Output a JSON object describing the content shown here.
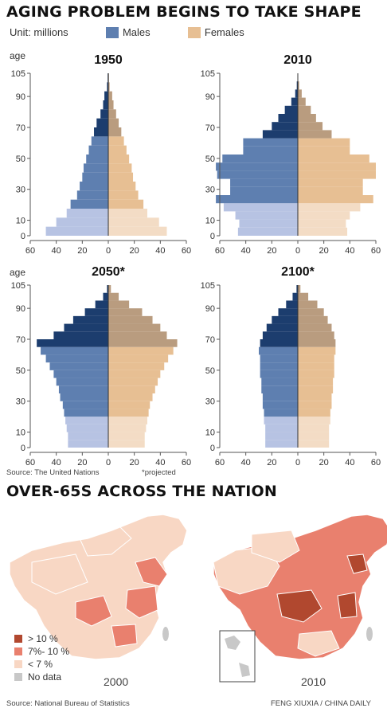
{
  "header": {
    "title": "AGING PROBLEM BEGINS TO TAKE SHAPE",
    "unit": "Unit: millions",
    "males_label": "Males",
    "females_label": "Females",
    "age_label": "age",
    "source_un": "Source: The United Nations",
    "projected_note": "*projected"
  },
  "colors": {
    "male_young": "#b7c3e3",
    "male_mid": "#5e7fb0",
    "male_old": "#1c3d6e",
    "female_young": "#f3dcc5",
    "female_mid": "#e7bf93",
    "female_old": "#b99c7f",
    "map_high": "#b1482f",
    "map_mid": "#e9806e",
    "map_low": "#f8d7c4",
    "map_nodata": "#c8c8c8"
  },
  "chart_data": [
    {
      "type": "bar",
      "subtype": "population-pyramid",
      "title": "1950",
      "ylabel": "age",
      "age_ticks": [
        0,
        10,
        30,
        50,
        70,
        90,
        105
      ],
      "x_ticks": [
        "60",
        "40",
        "20",
        "0",
        "20",
        "40",
        "60"
      ],
      "xlim": [
        -60,
        60
      ],
      "ylim": [
        0,
        105
      ],
      "age_groups": [
        "0-4",
        "5-9",
        "10-14",
        "15-19",
        "20-24",
        "25-29",
        "30-34",
        "35-39",
        "40-44",
        "45-49",
        "50-54",
        "55-59",
        "60-64",
        "65-69",
        "70-74",
        "75-79",
        "80-84",
        "85+"
      ],
      "series": [
        {
          "name": "Males",
          "values": [
            48,
            40,
            32,
            29,
            24,
            22,
            20,
            19,
            17,
            15,
            13,
            11,
            9,
            6,
            4,
            3,
            1,
            0.5
          ]
        },
        {
          "name": "Females",
          "values": [
            45,
            39,
            30,
            27,
            23,
            21,
            19,
            18,
            16,
            14,
            12,
            10,
            8,
            6,
            4,
            3,
            1,
            0.5
          ]
        }
      ]
    },
    {
      "type": "bar",
      "subtype": "population-pyramid",
      "title": "2010",
      "ylabel": "age",
      "age_ticks": [
        0,
        10,
        30,
        50,
        70,
        90,
        105
      ],
      "x_ticks": [
        "60",
        "40",
        "20",
        "0",
        "20",
        "40",
        "60"
      ],
      "xlim": [
        -60,
        60
      ],
      "ylim": [
        0,
        105
      ],
      "age_groups": [
        "0-4",
        "5-9",
        "10-14",
        "15-19",
        "20-24",
        "25-29",
        "30-34",
        "35-39",
        "40-44",
        "45-49",
        "50-54",
        "55-59",
        "60-64",
        "65-69",
        "70-74",
        "75-79",
        "80-84",
        "85-89",
        "90-94",
        "95+"
      ],
      "series": [
        {
          "name": "Males",
          "values": [
            46,
            45,
            48,
            57,
            63,
            52,
            52,
            62,
            63,
            58,
            42,
            42,
            27,
            20,
            15,
            10,
            5,
            2,
            0.8,
            0.2
          ]
        },
        {
          "name": "Females",
          "values": [
            38,
            37,
            40,
            48,
            58,
            50,
            50,
            60,
            60,
            55,
            40,
            40,
            26,
            19,
            14,
            10,
            6,
            3,
            1,
            0.3
          ]
        }
      ]
    },
    {
      "type": "bar",
      "subtype": "population-pyramid",
      "title": "2050*",
      "ylabel": "age",
      "age_ticks": [
        0,
        10,
        30,
        50,
        70,
        90,
        105
      ],
      "x_ticks": [
        "60",
        "40",
        "20",
        "0",
        "20",
        "40",
        "60"
      ],
      "xlim": [
        -60,
        60
      ],
      "ylim": [
        0,
        105
      ],
      "age_groups": [
        "0-4",
        "5-9",
        "10-14",
        "15-19",
        "20-24",
        "25-29",
        "30-34",
        "35-39",
        "40-44",
        "45-49",
        "50-54",
        "55-59",
        "60-64",
        "65-69",
        "70-74",
        "75-79",
        "80-84",
        "85-89",
        "90-94",
        "95-99",
        "100+"
      ],
      "series": [
        {
          "name": "Males",
          "values": [
            31,
            31,
            32,
            33,
            34,
            35,
            37,
            38,
            40,
            42,
            45,
            48,
            52,
            55,
            42,
            34,
            27,
            18,
            10,
            4,
            1
          ]
        },
        {
          "name": "Females",
          "values": [
            28,
            28,
            29,
            30,
            31,
            32,
            34,
            36,
            38,
            40,
            43,
            46,
            50,
            53,
            45,
            40,
            34,
            26,
            16,
            8,
            2
          ]
        }
      ]
    },
    {
      "type": "bar",
      "subtype": "population-pyramid",
      "title": "2100*",
      "ylabel": "age",
      "age_ticks": [
        0,
        10,
        30,
        50,
        70,
        90,
        105
      ],
      "x_ticks": [
        "60",
        "40",
        "20",
        "0",
        "20",
        "40",
        "60"
      ],
      "xlim": [
        -60,
        60
      ],
      "ylim": [
        0,
        105
      ],
      "age_groups": [
        "0-4",
        "5-9",
        "10-14",
        "15-19",
        "20-24",
        "25-29",
        "30-34",
        "35-39",
        "40-44",
        "45-49",
        "50-54",
        "55-59",
        "60-64",
        "65-69",
        "70-74",
        "75-79",
        "80-84",
        "85-89",
        "90-94",
        "95-99",
        "100+"
      ],
      "series": [
        {
          "name": "Males",
          "values": [
            25,
            25,
            25,
            26,
            26,
            27,
            27,
            28,
            28,
            29,
            29,
            29,
            30,
            29,
            27,
            24,
            20,
            15,
            9,
            4,
            1
          ]
        },
        {
          "name": "Females",
          "values": [
            24,
            24,
            24,
            25,
            25,
            26,
            26,
            27,
            27,
            28,
            28,
            28,
            29,
            29,
            28,
            26,
            23,
            20,
            15,
            8,
            2
          ]
        }
      ]
    }
  ],
  "map_section": {
    "title": "OVER-65S ACROSS THE NATION",
    "legend": [
      {
        "label": "> 10 %",
        "color": "#b1482f"
      },
      {
        "label": "7%- 10 %",
        "color": "#e9806e"
      },
      {
        "label": "< 7 %",
        "color": "#f8d7c4"
      },
      {
        "label": "No data",
        "color": "#c8c8c8"
      }
    ],
    "year_left": "2000",
    "year_right": "2010",
    "source": "Source: National Bureau of Statistics",
    "credit": "FENG XIUXIA / CHINA DAILY"
  }
}
